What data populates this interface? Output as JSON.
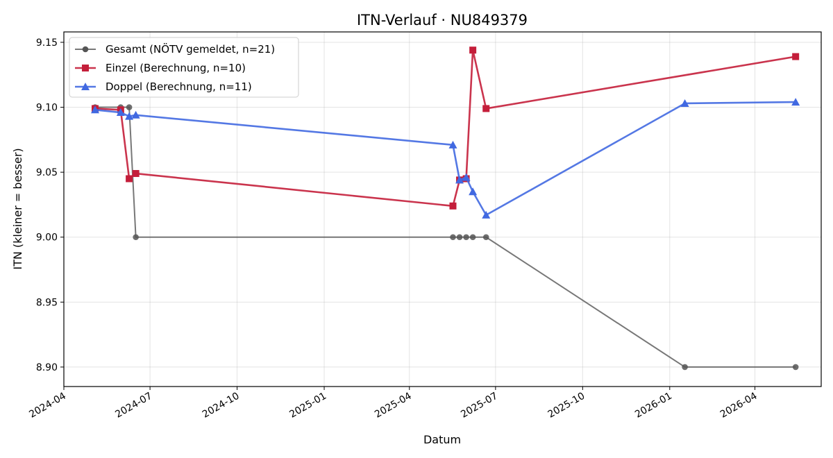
{
  "chart_data": {
    "type": "line",
    "title": "ITN-Verlauf · NU849379",
    "xlabel": "Datum",
    "ylabel": "ITN  (kleiner = besser)",
    "ylim": [
      8.885,
      9.158
    ],
    "xlim": [
      "2024-04-01",
      "2026-06-10"
    ],
    "grid": true,
    "legend_position": "top-left",
    "x_ticks": [
      "2024-04",
      "2024-07",
      "2024-10",
      "2025-01",
      "2025-04",
      "2025-07",
      "2025-10",
      "2026-01",
      "2026-04"
    ],
    "y_ticks": [
      "8.90",
      "8.95",
      "9.00",
      "9.05",
      "9.10",
      "9.15"
    ],
    "series": [
      {
        "name": "Gesamt (NÖTV gemeldet, n=21)",
        "color": "#555555",
        "marker": "circle",
        "x": [
          "2024-05-04",
          "2024-05-31",
          "2024-06-09",
          "2024-06-16",
          "2025-05-17",
          "2025-05-24",
          "2025-05-31",
          "2025-06-07",
          "2025-06-21",
          "2026-01-17",
          "2026-05-14"
        ],
        "y": [
          9.1,
          9.1,
          9.1,
          9.0,
          9.0,
          9.0,
          9.0,
          9.0,
          9.0,
          8.9,
          8.9
        ]
      },
      {
        "name": "Einzel (Berechnung, n=10)",
        "color": "#c41e3a",
        "marker": "square",
        "x": [
          "2024-05-04",
          "2024-05-31",
          "2024-06-09",
          "2024-06-16",
          "2025-05-17",
          "2025-05-24",
          "2025-05-31",
          "2025-06-07",
          "2025-06-21",
          "2026-05-14"
        ],
        "y": [
          9.099,
          9.098,
          9.045,
          9.049,
          9.024,
          9.044,
          9.045,
          9.144,
          9.099,
          9.139
        ]
      },
      {
        "name": "Doppel (Berechnung, n=11)",
        "color": "#4169e1",
        "marker": "triangle",
        "x": [
          "2024-05-04",
          "2024-05-31",
          "2024-06-09",
          "2024-06-16",
          "2025-05-17",
          "2025-05-24",
          "2025-05-31",
          "2025-06-07",
          "2025-06-21",
          "2026-01-17",
          "2026-05-14"
        ],
        "y": [
          9.098,
          9.096,
          9.093,
          9.094,
          9.071,
          9.044,
          9.046,
          9.035,
          9.017,
          9.103,
          9.104
        ]
      }
    ]
  }
}
